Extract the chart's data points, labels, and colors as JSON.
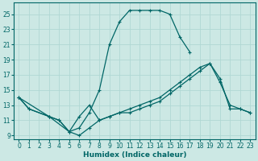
{
  "xlabel": "Humidex (Indice chaleur)",
  "background_color": "#cce8e4",
  "grid_color": "#b0d8d4",
  "line_color": "#006666",
  "xlim": [
    -0.5,
    23.5
  ],
  "ylim": [
    8.5,
    26.5
  ],
  "xticks": [
    0,
    1,
    2,
    3,
    4,
    5,
    6,
    7,
    8,
    9,
    10,
    11,
    12,
    13,
    14,
    15,
    16,
    17,
    18,
    19,
    20,
    21,
    22,
    23
  ],
  "yticks": [
    9,
    11,
    13,
    15,
    17,
    19,
    21,
    23,
    25
  ],
  "series1_x": [
    0,
    1,
    3,
    4,
    5,
    6,
    7,
    8,
    9,
    10,
    11,
    12,
    13,
    14,
    15,
    16,
    17,
    18,
    19,
    20,
    21,
    22,
    23
  ],
  "series1_y": [
    14,
    12.5,
    11.5,
    11,
    9.5,
    9,
    10,
    11,
    11.5,
    12,
    12.5,
    13,
    13.5,
    14,
    15,
    16,
    17,
    18,
    18.5,
    16,
    13,
    12.5,
    12
  ],
  "series2_x": [
    0,
    1,
    3,
    4,
    5,
    6,
    7,
    8,
    9,
    10,
    11,
    12,
    13,
    14,
    15,
    16,
    17
  ],
  "series2_y": [
    14,
    12.5,
    11.5,
    11,
    9.5,
    10,
    12,
    15,
    21,
    24,
    25.5,
    25.5,
    25.5,
    25.5,
    25,
    22,
    20
  ],
  "series3_x": [
    0,
    3,
    5,
    6,
    7,
    8,
    9,
    10,
    11,
    12,
    13,
    14,
    15,
    16,
    17,
    18,
    19,
    20,
    21,
    22,
    23
  ],
  "series3_y": [
    14,
    11.5,
    9.5,
    11.5,
    13,
    11,
    11.5,
    12,
    12,
    12.5,
    13,
    13.5,
    14.5,
    15.5,
    16.5,
    17.5,
    18.5,
    16.5,
    12.5,
    12.5,
    12
  ]
}
